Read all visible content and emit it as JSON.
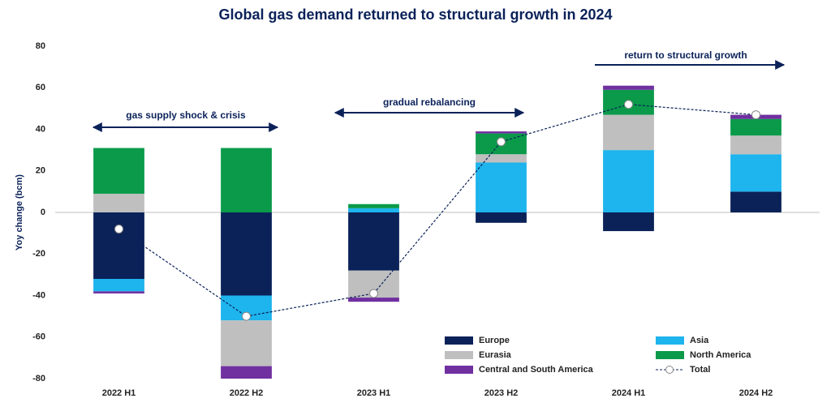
{
  "chart_data": {
    "type": "bar",
    "stacked": true,
    "title": "Global gas demand returned to structural growth in 2024",
    "y_label": "Yoy change (bcm)",
    "categories": [
      "2022 H1",
      "2022 H2",
      "2023 H1",
      "2023 H2",
      "2024 H1",
      "2024 H2"
    ],
    "series": [
      {
        "name": "Europe",
        "color": "#0b2259",
        "values": [
          -32,
          -40,
          -28,
          -5,
          -9,
          10
        ]
      },
      {
        "name": "Asia",
        "color": "#1eb4ed",
        "values": [
          -6,
          -12,
          2,
          24,
          30,
          18
        ]
      },
      {
        "name": "Eurasia",
        "color": "#bfbfbf",
        "values": [
          9,
          -22,
          -13,
          4,
          17,
          9
        ]
      },
      {
        "name": "North America",
        "color": "#0a9a4a",
        "values": [
          22,
          31,
          2,
          10,
          12,
          8
        ]
      },
      {
        "name": "Central and South America",
        "color": "#7030a0",
        "values": [
          -1,
          -6,
          -2,
          1,
          2,
          2
        ]
      },
      {
        "name": "Total",
        "color": "#0b2259",
        "type": "line",
        "values": [
          -8,
          -50,
          -39,
          34,
          52,
          47
        ]
      }
    ],
    "ylim": [
      -80,
      80
    ],
    "yticks": [
      -80,
      -60,
      -40,
      -20,
      0,
      20,
      40,
      60,
      80
    ],
    "grid": false,
    "annotations": [
      "gas supply shock & crisis",
      "gradual rebalancing",
      "return to structural growth"
    ]
  }
}
